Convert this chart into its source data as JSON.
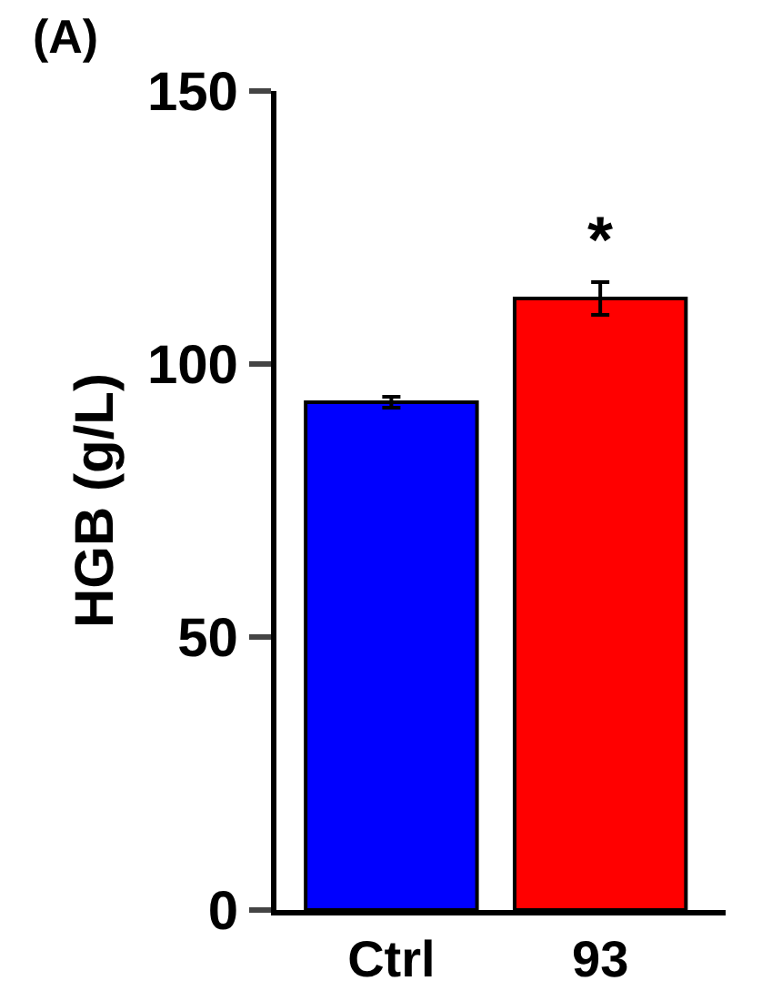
{
  "chart_data": {
    "type": "bar",
    "ylabel": "HGB (g/L)",
    "categories": [
      "Ctrl",
      "93"
    ],
    "values": [
      93,
      112
    ],
    "colors": [
      "#0000ff",
      "#ff0000"
    ],
    "errors": [
      1,
      3
    ],
    "ylim": [
      0,
      150
    ],
    "yticks": [
      0,
      50,
      100,
      150
    ],
    "grid": false,
    "annotations": [
      "(A)",
      "*"
    ]
  }
}
